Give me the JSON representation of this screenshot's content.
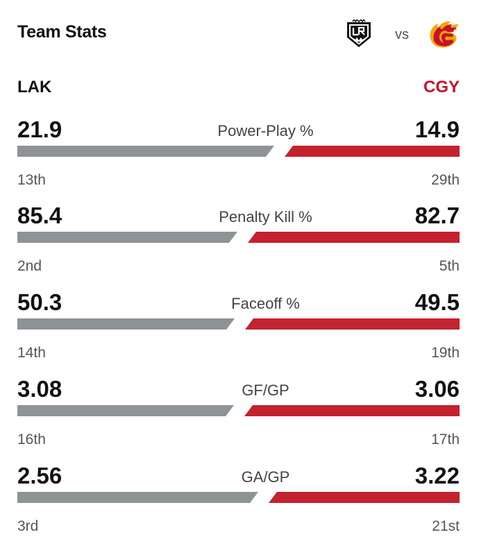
{
  "header": {
    "title": "Team Stats",
    "vs": "vs",
    "home_logo_icon": "la-kings-logo-icon",
    "away_logo_icon": "calgary-flames-logo-icon"
  },
  "teams": {
    "left": "LAK",
    "right": "CGY",
    "left_color": "#8e9495",
    "right_color": "#c3222e"
  },
  "stats": [
    {
      "label": "Power-Play %",
      "left_value": "21.9",
      "right_value": "14.9",
      "left_rank": "13th",
      "right_rank": "29th"
    },
    {
      "label": "Penalty Kill %",
      "left_value": "85.4",
      "right_value": "82.7",
      "left_rank": "2nd",
      "right_rank": "5th"
    },
    {
      "label": "Faceoff %",
      "left_value": "50.3",
      "right_value": "49.5",
      "left_rank": "14th",
      "right_rank": "19th"
    },
    {
      "label": "GF/GP",
      "left_value": "3.08",
      "right_value": "3.06",
      "left_rank": "16th",
      "right_rank": "17th"
    },
    {
      "label": "GA/GP",
      "left_value": "2.56",
      "right_value": "3.22",
      "left_rank": "3rd",
      "right_rank": "21st"
    }
  ]
}
